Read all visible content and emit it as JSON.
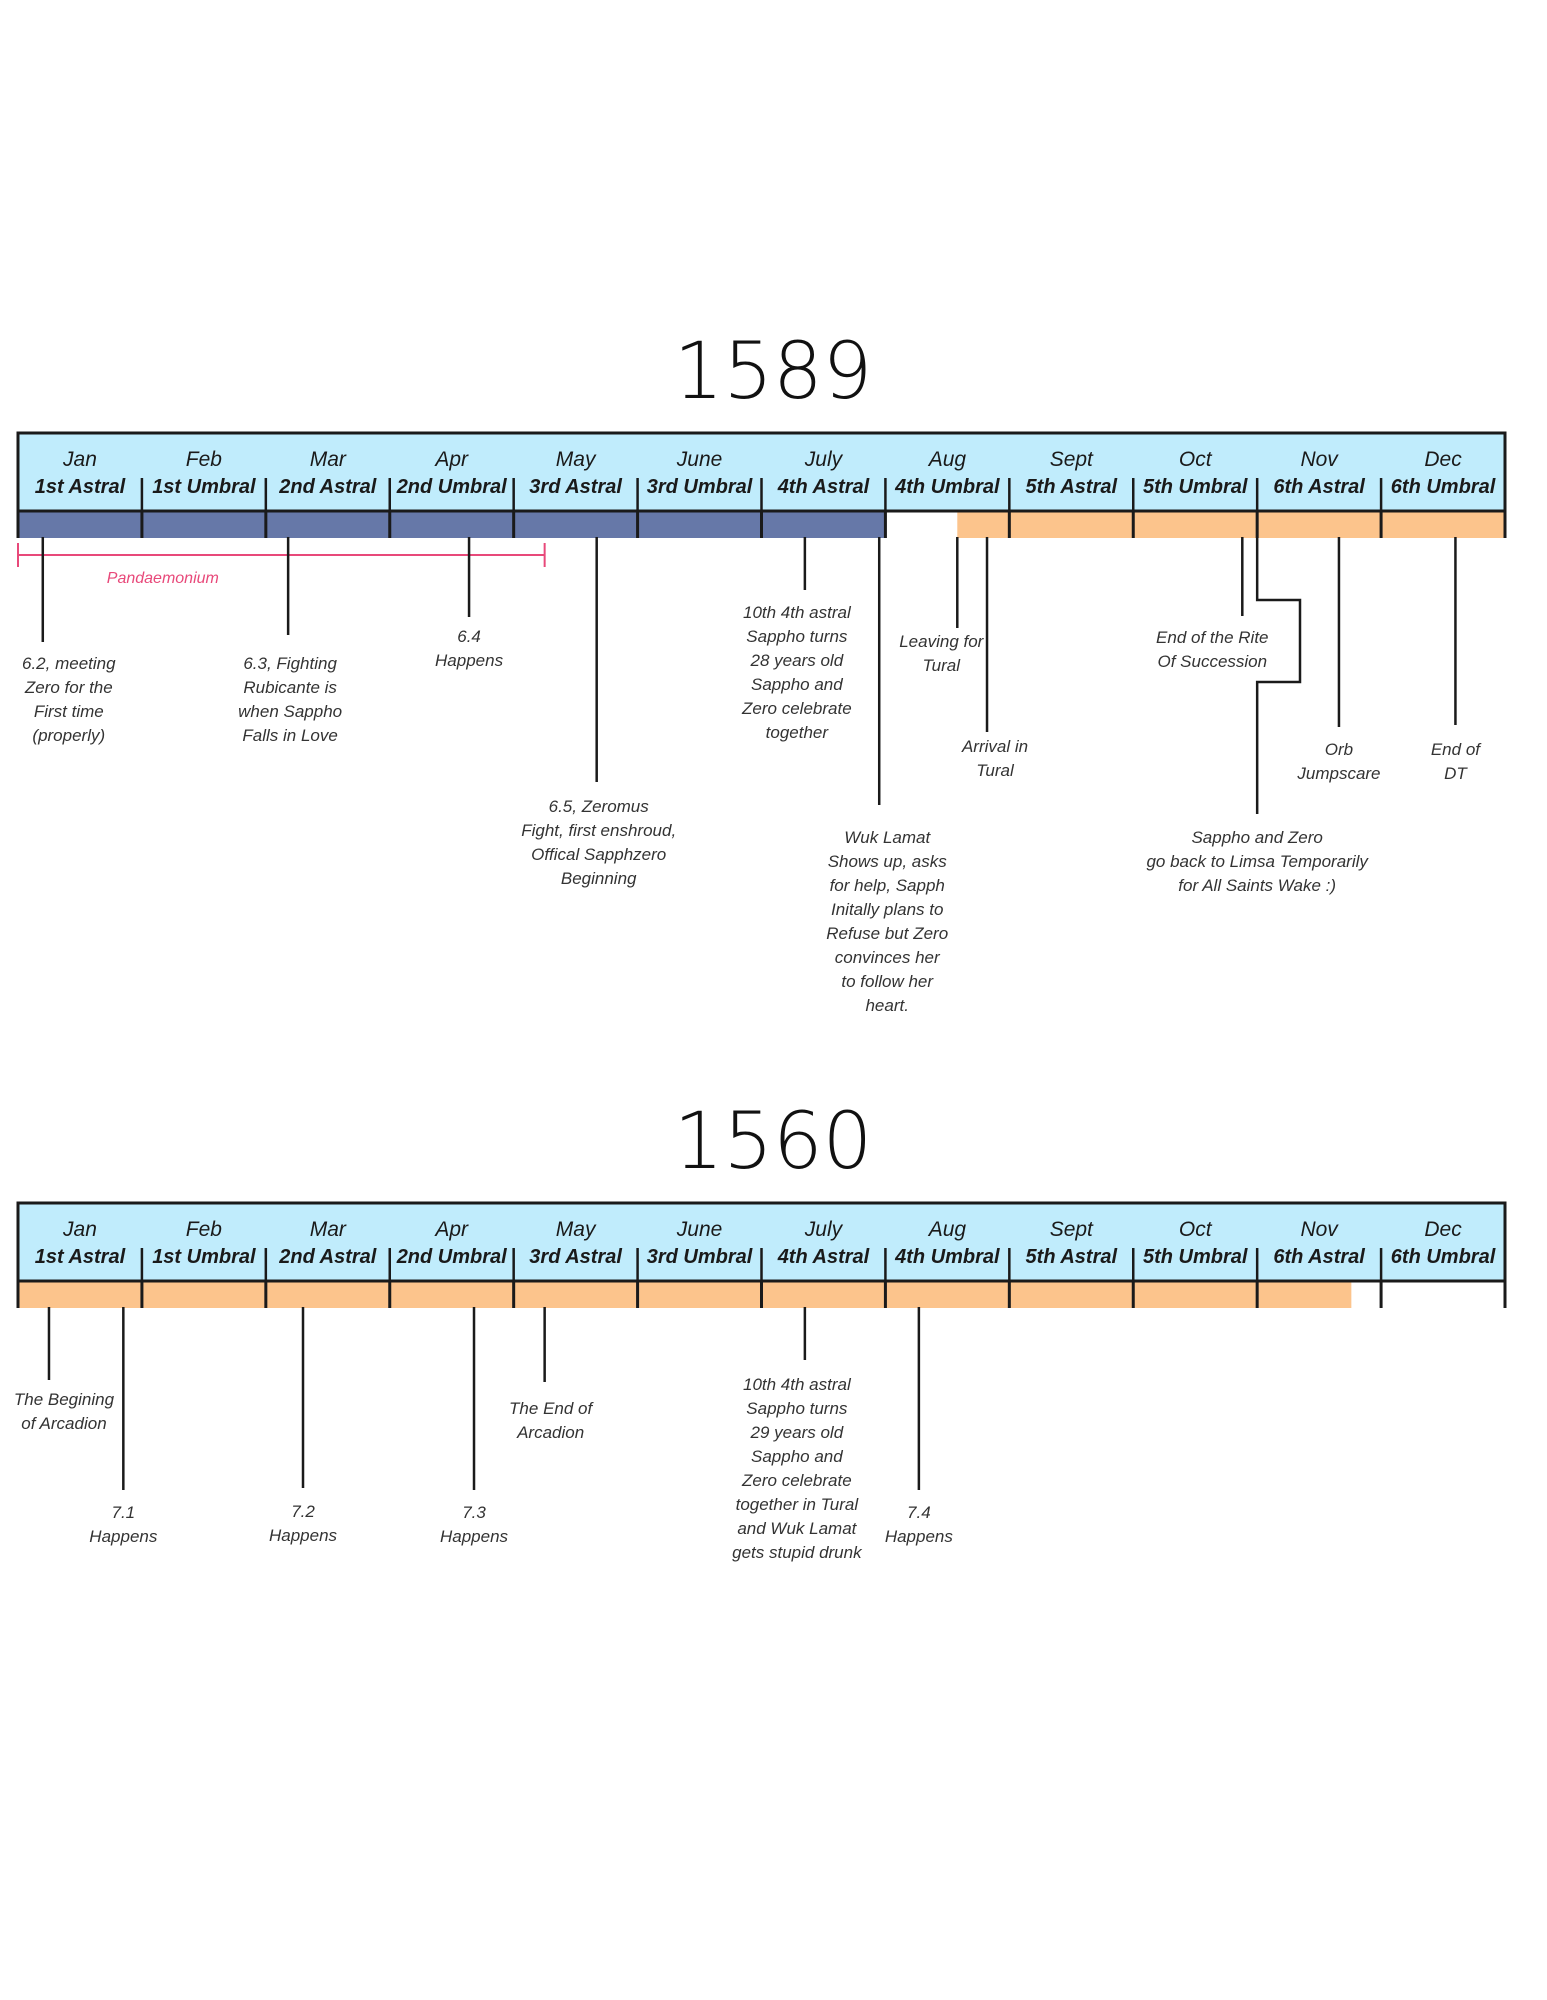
{
  "months": [
    {
      "name": "Jan",
      "phase": "1st Astral"
    },
    {
      "name": "Feb",
      "phase": "1st Umbral"
    },
    {
      "name": "Mar",
      "phase": "2nd Astral"
    },
    {
      "name": "Apr",
      "phase": "2nd Umbral"
    },
    {
      "name": "May",
      "phase": "3rd Astral"
    },
    {
      "name": "June",
      "phase": "3rd Umbral"
    },
    {
      "name": "July",
      "phase": "4th Astral"
    },
    {
      "name": "Aug",
      "phase": "4th Umbral"
    },
    {
      "name": "Sept",
      "phase": "5th Astral"
    },
    {
      "name": "Oct",
      "phase": "5th Umbral"
    },
    {
      "name": "Nov",
      "phase": "6th Astral"
    },
    {
      "name": "Dec",
      "phase": "6th Umbral"
    }
  ],
  "colors": {
    "header_fill": "#c0ecfc",
    "border": "#1a1a1a",
    "bar_blue": "#6678a8",
    "bar_orange": "#fcc48c",
    "span_pink": "#e8497a"
  },
  "timelines": [
    {
      "year": "1589",
      "bars": [
        {
          "color": "bar_blue",
          "start_month": 0,
          "end_month": 7.0
        },
        {
          "color": "bar_orange",
          "start_month": 7.58,
          "end_month": 12
        }
      ],
      "spans": [
        {
          "label": "Pandaemonium",
          "start_month": 0,
          "end_month": 4.25
        }
      ],
      "events": [
        {
          "month": 0.2,
          "lines": [
            "6.2, meeting",
            "Zero for the",
            "First time",
            "(properly)"
          ]
        },
        {
          "month": 2.18,
          "lines": [
            "6.3, Fighting",
            "Rubicante is",
            "when Sappho",
            "Falls in Love"
          ]
        },
        {
          "month": 3.64,
          "lines": [
            "6.4",
            "Happens"
          ]
        },
        {
          "month": 4.67,
          "lines": [
            "6.5, Zeromus",
            "Fight, first enshroud,",
            "Offical Sapphzero",
            "Beginning"
          ]
        },
        {
          "month": 6.35,
          "lines": [
            "10th 4th astral",
            "Sappho turns",
            "28 years old",
            "Sappho and",
            "Zero celebrate",
            "together"
          ]
        },
        {
          "month": 6.95,
          "lines": [
            "Wuk Lamat",
            "Shows up, asks",
            "for help, Sapph",
            "Initally plans to",
            "Refuse but Zero",
            "convinces her",
            "to follow her",
            "heart."
          ]
        },
        {
          "month": 7.58,
          "lines": [
            "Leaving for",
            "Tural"
          ]
        },
        {
          "month": 7.82,
          "lines": [
            "Arrival in",
            "Tural"
          ]
        },
        {
          "month": 9.88,
          "lines": [
            "End of the Rite",
            "Of Succession"
          ]
        },
        {
          "month": 10.0,
          "lines": [
            "Sappho and Zero",
            "go back to Limsa Temporarily",
            "for All Saints Wake :)"
          ]
        },
        {
          "month": 10.66,
          "lines": [
            "Orb",
            "Jumpscare"
          ]
        },
        {
          "month": 11.6,
          "lines": [
            "End of",
            "DT"
          ]
        }
      ]
    },
    {
      "year": "1560",
      "bars": [
        {
          "color": "bar_orange",
          "start_month": 0,
          "end_month": 10.76
        }
      ],
      "spans": [],
      "events": [
        {
          "month": 0.25,
          "lines": [
            "The Begining",
            "of Arcadion"
          ]
        },
        {
          "month": 0.85,
          "lines": [
            "7.1",
            "Happens"
          ]
        },
        {
          "month": 2.3,
          "lines": [
            "7.2",
            "Happens"
          ]
        },
        {
          "month": 3.68,
          "lines": [
            "7.3",
            "Happens"
          ]
        },
        {
          "month": 4.25,
          "lines": [
            "The End of",
            "Arcadion"
          ]
        },
        {
          "month": 6.35,
          "lines": [
            "10th 4th astral",
            "Sappho turns",
            "29 years old",
            "Sappho and",
            "Zero celebrate",
            "together in Tural",
            "and Wuk Lamat",
            "gets stupid drunk"
          ]
        },
        {
          "month": 7.27,
          "lines": [
            "7.4",
            "Happens"
          ]
        }
      ]
    }
  ]
}
